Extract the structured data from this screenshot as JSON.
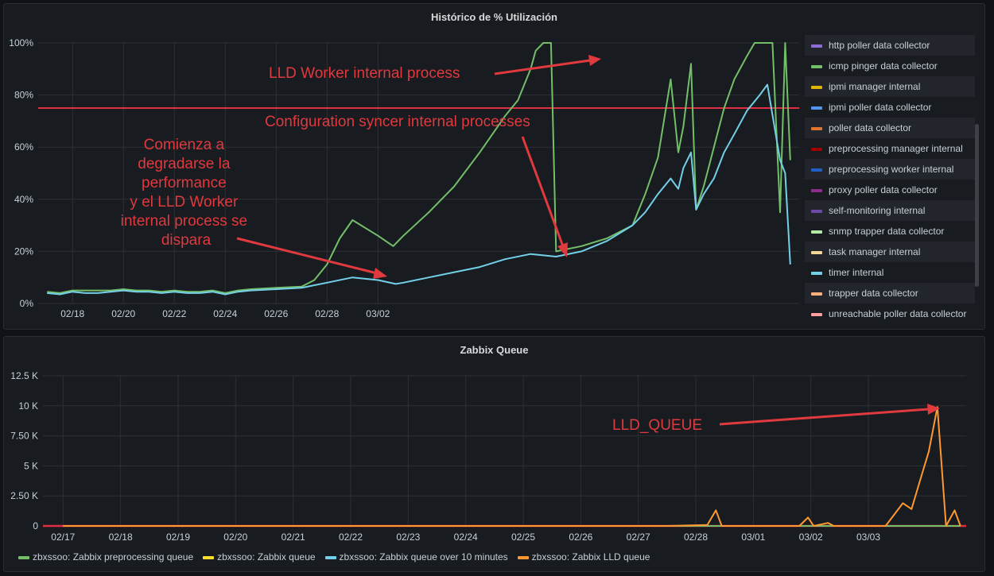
{
  "charts": {
    "top": {
      "title": "Histórico de % Utilización",
      "y_ticks": [
        "0%",
        "20%",
        "40%",
        "60%",
        "80%",
        "100%"
      ],
      "x_ticks": [
        "02/18",
        "02/20",
        "02/22",
        "02/24",
        "02/26",
        "02/28",
        "03/02"
      ],
      "annotations": {
        "lld_worker": "LLD Worker internal process",
        "config_syncer": "Configuration syncer internal processes",
        "degrade": [
          "Comienza a",
          "degradarse la",
          "performance",
          "y el LLD Worker",
          "internal process se",
          "dispara"
        ]
      },
      "legend": [
        {
          "name": "http poller data collector",
          "color": "#8f6dd6"
        },
        {
          "name": "icmp pinger data collector",
          "color": "#73bf69"
        },
        {
          "name": "ipmi manager internal",
          "color": "#e0b400"
        },
        {
          "name": "ipmi poller data collector",
          "color": "#5794f2"
        },
        {
          "name": "poller data collector",
          "color": "#e0752d"
        },
        {
          "name": "preprocessing manager internal",
          "color": "#a10000"
        },
        {
          "name": "preprocessing worker internal",
          "color": "#1f60c4"
        },
        {
          "name": "proxy poller data collector",
          "color": "#8e2a8c"
        },
        {
          "name": "self-monitoring internal",
          "color": "#6e4aa8"
        },
        {
          "name": "snmp trapper data collector",
          "color": "#b5e8a5"
        },
        {
          "name": "task manager internal",
          "color": "#f4d598"
        },
        {
          "name": "timer internal",
          "color": "#73d0e8"
        },
        {
          "name": "trapper data collector",
          "color": "#ffb07a"
        },
        {
          "name": "unreachable poller data collector",
          "color": "#ff9e9e"
        }
      ]
    },
    "bottom": {
      "title": "Zabbix Queue",
      "y_ticks": [
        "0",
        "2.50 K",
        "5 K",
        "7.50 K",
        "10 K",
        "12.5 K"
      ],
      "x_ticks": [
        "02/17",
        "02/18",
        "02/19",
        "02/20",
        "02/21",
        "02/22",
        "02/23",
        "02/24",
        "02/25",
        "02/26",
        "02/27",
        "02/28",
        "03/01",
        "03/02",
        "03/03"
      ],
      "annotations": {
        "lld_queue": "LLD_QUEUE"
      },
      "legend": [
        {
          "name": "zbxssoo: Zabbix preprocessing queue",
          "color": "#73bf69"
        },
        {
          "name": "zbxssoo: Zabbix queue",
          "color": "#fade2a"
        },
        {
          "name": "zbxssoo: Zabbix queue over 10 minutes",
          "color": "#73d0e8"
        },
        {
          "name": "zbxssoo: Zabbix LLD queue",
          "color": "#ff9830"
        }
      ]
    }
  },
  "chart_data": [
    {
      "type": "line",
      "title": "Histórico de % Utilización",
      "x_unit": "day (Feb 17 = 0)",
      "ylim": [
        0,
        100
      ],
      "threshold": 75,
      "series": [
        {
          "name": "icmp pinger data collector",
          "color": "#73bf69",
          "points": [
            [
              0,
              4.5
            ],
            [
              0.5,
              4
            ],
            [
              1,
              5
            ],
            [
              1.5,
              5
            ],
            [
              2,
              5
            ],
            [
              2.5,
              5
            ],
            [
              3,
              5.5
            ],
            [
              3.5,
              5
            ],
            [
              4,
              5
            ],
            [
              4.5,
              4.5
            ],
            [
              5,
              5
            ],
            [
              5.5,
              4.5
            ],
            [
              6,
              4.5
            ],
            [
              6.5,
              5
            ],
            [
              7,
              4
            ],
            [
              7.5,
              5
            ],
            [
              8,
              5.5
            ],
            [
              9,
              6
            ],
            [
              10,
              6.5
            ],
            [
              10.5,
              9
            ],
            [
              11,
              15
            ],
            [
              11.5,
              25
            ],
            [
              12,
              32
            ],
            [
              13,
              26
            ],
            [
              13.6,
              22
            ],
            [
              14,
              26
            ],
            [
              15,
              35
            ],
            [
              16,
              45
            ],
            [
              17,
              58
            ],
            [
              17.5,
              65
            ],
            [
              18,
              72
            ],
            [
              18.5,
              78
            ],
            [
              19,
              90
            ],
            [
              19.2,
              97
            ],
            [
              19.5,
              100
            ],
            [
              19.8,
              100
            ],
            [
              20,
              20
            ],
            [
              21,
              22
            ],
            [
              22,
              25
            ],
            [
              23,
              30
            ],
            [
              23.5,
              42
            ],
            [
              24,
              56
            ],
            [
              24.5,
              86
            ],
            [
              24.8,
              58
            ],
            [
              25,
              68
            ],
            [
              25.3,
              92
            ],
            [
              25.5,
              36
            ],
            [
              25.8,
              45
            ],
            [
              26.2,
              60
            ],
            [
              26.6,
              75
            ],
            [
              27,
              86
            ],
            [
              27.5,
              95
            ],
            [
              27.8,
              100
            ],
            [
              28.5,
              100
            ],
            [
              28.8,
              35
            ],
            [
              29,
              100
            ],
            [
              29.2,
              55
            ]
          ]
        },
        {
          "name": "timer internal",
          "color": "#73d0e8",
          "points": [
            [
              0,
              4
            ],
            [
              0.5,
              3.5
            ],
            [
              1,
              4.5
            ],
            [
              1.5,
              4
            ],
            [
              2,
              4
            ],
            [
              2.5,
              4.5
            ],
            [
              3,
              5
            ],
            [
              3.5,
              4.5
            ],
            [
              4,
              4.5
            ],
            [
              4.5,
              4
            ],
            [
              5,
              4.5
            ],
            [
              5.5,
              4
            ],
            [
              6,
              4
            ],
            [
              6.5,
              4.5
            ],
            [
              7,
              3.5
            ],
            [
              7.5,
              4.5
            ],
            [
              8,
              5
            ],
            [
              9,
              5.5
            ],
            [
              10,
              6
            ],
            [
              10.5,
              7
            ],
            [
              11,
              8
            ],
            [
              12,
              10
            ],
            [
              13,
              9
            ],
            [
              13.7,
              7.5
            ],
            [
              14,
              8
            ],
            [
              15,
              10
            ],
            [
              16,
              12
            ],
            [
              17,
              14
            ],
            [
              18,
              17
            ],
            [
              19,
              19
            ],
            [
              20,
              18
            ],
            [
              21,
              20
            ],
            [
              22,
              24
            ],
            [
              23,
              30
            ],
            [
              23.5,
              35
            ],
            [
              24,
              42
            ],
            [
              24.5,
              48
            ],
            [
              24.8,
              44
            ],
            [
              25,
              52
            ],
            [
              25.3,
              58
            ],
            [
              25.5,
              36
            ],
            [
              25.8,
              42
            ],
            [
              26.2,
              48
            ],
            [
              26.6,
              58
            ],
            [
              27,
              65
            ],
            [
              27.5,
              74
            ],
            [
              28,
              80
            ],
            [
              28.3,
              84
            ],
            [
              28.8,
              55
            ],
            [
              29,
              50
            ],
            [
              29.2,
              15
            ]
          ]
        }
      ]
    },
    {
      "type": "line",
      "title": "Zabbix Queue",
      "x_unit": "day (Feb 17 = 0)",
      "ylim": [
        0,
        12500
      ],
      "series": [
        {
          "name": "zbxssoo: Zabbix LLD queue",
          "color": "#ff9830",
          "points": [
            [
              0,
              0
            ],
            [
              10.5,
              0
            ],
            [
              11.2,
              80
            ],
            [
              11.35,
              1300
            ],
            [
              11.45,
              0
            ],
            [
              12,
              0
            ],
            [
              12.8,
              0
            ],
            [
              12.95,
              700
            ],
            [
              13.05,
              0
            ],
            [
              13.3,
              250
            ],
            [
              13.4,
              0
            ],
            [
              14.3,
              0
            ],
            [
              14.6,
              1900
            ],
            [
              14.75,
              1400
            ],
            [
              14.9,
              3800
            ],
            [
              15.05,
              6200
            ],
            [
              15.2,
              9900
            ],
            [
              15.35,
              0
            ],
            [
              15.5,
              1300
            ],
            [
              15.6,
              0
            ]
          ]
        },
        {
          "name": "zbxssoo: Zabbix preprocessing queue",
          "color": "#73bf69",
          "points": [
            [
              0,
              0
            ],
            [
              15.6,
              0
            ]
          ]
        }
      ]
    }
  ]
}
